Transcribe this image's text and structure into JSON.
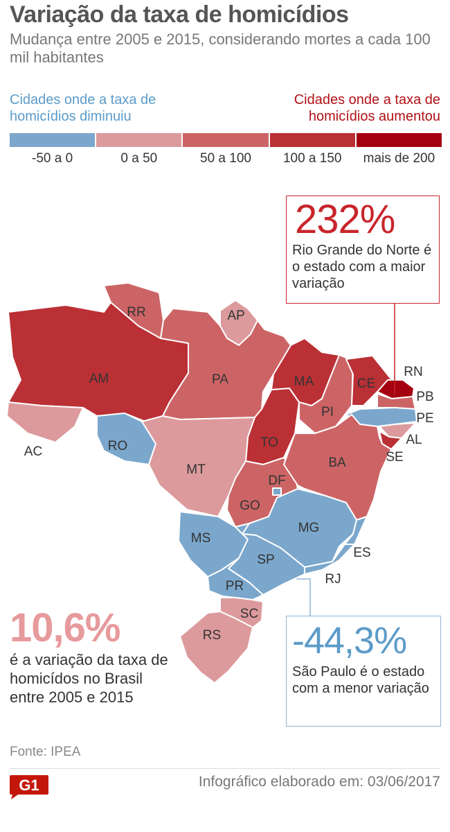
{
  "header": {
    "title": "Variação da taxa de homicídios",
    "subtitle": "Mudança entre 2005 e 2015, considerando mortes a cada 100 mil habitantes"
  },
  "legend": {
    "decreased_caption": "Cidades onde a taxa de homicídios diminuiu",
    "increased_caption": "Cidades onde a taxa de homicídios aumentou",
    "bins": [
      {
        "label": "-50 a 0",
        "color": "#7ba7cc"
      },
      {
        "label": "0 a 50",
        "color": "#dc9a9c"
      },
      {
        "label": "50 a 100",
        "color": "#cc6466"
      },
      {
        "label": "100 a 150",
        "color": "#ba3035"
      },
      {
        "label": "mais de 200",
        "color": "#a50010"
      }
    ]
  },
  "states": {
    "AM": {
      "label": "AM",
      "bin": 3
    },
    "RR": {
      "label": "RR",
      "bin": 2
    },
    "AP": {
      "label": "AP",
      "bin": 1
    },
    "PA": {
      "label": "PA",
      "bin": 2
    },
    "AC": {
      "label": "AC",
      "bin": 1
    },
    "RO": {
      "label": "RO",
      "bin": 0
    },
    "MT": {
      "label": "MT",
      "bin": 1
    },
    "TO": {
      "label": "TO",
      "bin": 3
    },
    "MA": {
      "label": "MA",
      "bin": 3
    },
    "PI": {
      "label": "PI",
      "bin": 2
    },
    "CE": {
      "label": "CE",
      "bin": 3
    },
    "RN": {
      "label": "RN",
      "bin": 4
    },
    "PB": {
      "label": "PB",
      "bin": 2
    },
    "PE": {
      "label": "PE",
      "bin": 0
    },
    "AL": {
      "label": "AL",
      "bin": 1
    },
    "SE": {
      "label": "SE",
      "bin": 3
    },
    "BA": {
      "label": "BA",
      "bin": 2
    },
    "GO": {
      "label": "GO",
      "bin": 2
    },
    "DF": {
      "label": "DF",
      "bin": 0
    },
    "MG": {
      "label": "MG",
      "bin": 0
    },
    "ES": {
      "label": "ES",
      "bin": 0
    },
    "RJ": {
      "label": "RJ",
      "bin": 0
    },
    "MS": {
      "label": "MS",
      "bin": 0
    },
    "SP": {
      "label": "SP",
      "bin": 0
    },
    "PR": {
      "label": "PR",
      "bin": 0
    },
    "SC": {
      "label": "SC",
      "bin": 1
    },
    "RS": {
      "label": "RS",
      "bin": 1
    }
  },
  "callouts": {
    "max": {
      "value": "232%",
      "text": "Rio Grande do Norte é o estado com a maior variação",
      "color": "#c8252b"
    },
    "min": {
      "value": "-44,3%",
      "text": "São Paulo é o estado com a menor variação",
      "color": "#5b9bc9"
    }
  },
  "national": {
    "value": "10,6%",
    "text": "é a variação da taxa de homicídos no Brasil entre 2005 e 2015"
  },
  "footer": {
    "source": "Fonte: IPEA",
    "credit": "Infográfico elaborado em: 03/06/2017",
    "logo_text": "G1"
  }
}
